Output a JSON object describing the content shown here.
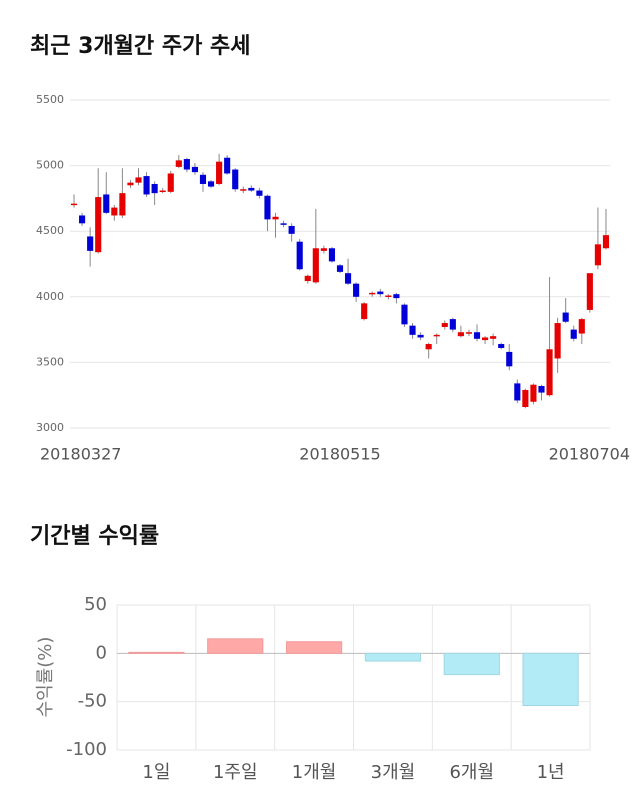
{
  "chart_data": [
    {
      "type": "candlestick",
      "title": "최근 3개월간 주가 추세",
      "categories": [
        "20180327",
        null,
        null,
        null,
        null,
        null,
        null,
        null,
        null,
        null,
        null,
        null,
        null,
        null,
        null,
        null,
        null,
        null,
        null,
        null,
        null,
        null,
        null,
        null,
        null,
        null,
        null,
        null,
        null,
        null,
        null,
        null,
        null,
        "20180515",
        null,
        null,
        null,
        null,
        null,
        null,
        null,
        null,
        null,
        null,
        null,
        null,
        null,
        null,
        null,
        null,
        null,
        null,
        null,
        null,
        null,
        null,
        null,
        null,
        null,
        null,
        null,
        null,
        null,
        null,
        null,
        null,
        "20180704"
      ],
      "open": [
        4700,
        4620,
        4460,
        4340,
        4780,
        4620,
        4620,
        4850,
        4870,
        4920,
        4860,
        4800,
        4800,
        4990,
        5050,
        4990,
        4930,
        4880,
        4860,
        5060,
        4970,
        4810,
        4830,
        4810,
        4770,
        4590,
        4560,
        4540,
        4420,
        4120,
        4110,
        4350,
        4370,
        4240,
        4180,
        4100,
        3830,
        4020,
        4040,
        4000,
        4020,
        3940,
        3780,
        3710,
        3600,
        3700,
        3770,
        3830,
        3700,
        3720,
        3730,
        3670,
        3680,
        3640,
        3580,
        3340,
        3160,
        3200,
        3320,
        3250,
        3530,
        3880,
        3750,
        3720,
        3900,
        4240,
        4370
      ],
      "high": [
        4780,
        4640,
        4530,
        4980,
        4950,
        4700,
        4980,
        4890,
        4980,
        4950,
        4880,
        4830,
        4960,
        5080,
        5060,
        5020,
        4950,
        4890,
        5090,
        5080,
        4980,
        4840,
        4850,
        4830,
        4780,
        4640,
        4580,
        4560,
        4440,
        4170,
        4670,
        4390,
        4380,
        4250,
        4290,
        4110,
        3960,
        4040,
        4060,
        4020,
        4030,
        3950,
        3800,
        3730,
        3650,
        3720,
        3820,
        3840,
        3780,
        3750,
        3790,
        3700,
        3720,
        3650,
        3640,
        3370,
        3300,
        3340,
        3330,
        4150,
        3840,
        3990,
        3780,
        3840,
        4180,
        4680,
        4670
      ],
      "low": [
        4680,
        4540,
        4230,
        4330,
        4630,
        4580,
        4600,
        4830,
        4850,
        4760,
        4700,
        4790,
        4790,
        4980,
        4950,
        4930,
        4800,
        4830,
        4850,
        4930,
        4800,
        4790,
        4800,
        4750,
        4500,
        4450,
        4530,
        4420,
        4200,
        4100,
        4100,
        4330,
        4260,
        4180,
        4090,
        3960,
        3820,
        4000,
        4000,
        3980,
        3950,
        3770,
        3680,
        3670,
        3530,
        3640,
        3750,
        3730,
        3690,
        3700,
        3660,
        3640,
        3630,
        3600,
        3440,
        3190,
        3150,
        3180,
        3210,
        3240,
        3420,
        3800,
        3660,
        3640,
        3880,
        4210,
        4360
      ],
      "close": [
        4710,
        4560,
        4350,
        4760,
        4640,
        4680,
        4790,
        4870,
        4910,
        4780,
        4790,
        4810,
        4940,
        5040,
        4970,
        4950,
        4860,
        4840,
        5030,
        4940,
        4820,
        4820,
        4810,
        4770,
        4590,
        4610,
        4550,
        4480,
        4210,
        4160,
        4370,
        4370,
        4270,
        4190,
        4100,
        4000,
        3950,
        4030,
        4020,
        4010,
        3990,
        3790,
        3710,
        3690,
        3640,
        3710,
        3800,
        3750,
        3730,
        3730,
        3680,
        3690,
        3700,
        3610,
        3470,
        3210,
        3290,
        3330,
        3270,
        3600,
        3800,
        3810,
        3680,
        3830,
        4180,
        4400,
        4470
      ],
      "up_color": "#e60000",
      "down_color": "#0000d8",
      "ylim": [
        3000,
        5500
      ],
      "yticks": [
        3000,
        3500,
        4000,
        4500,
        5000,
        5500
      ],
      "grid": true
    },
    {
      "type": "bar",
      "title": "기간별 수익률",
      "y_label": "수익률(%)",
      "categories": [
        "1일",
        "1주일",
        "1개월",
        "3개월",
        "6개월",
        "1년"
      ],
      "values": [
        1,
        15,
        12,
        -8,
        -22,
        -54
      ],
      "positive_color": "#ffa8a8",
      "negative_color": "#b2ebf5",
      "ylim": [
        -100,
        50
      ],
      "yticks": [
        50,
        0,
        -50,
        -100
      ],
      "grid": true
    }
  ]
}
